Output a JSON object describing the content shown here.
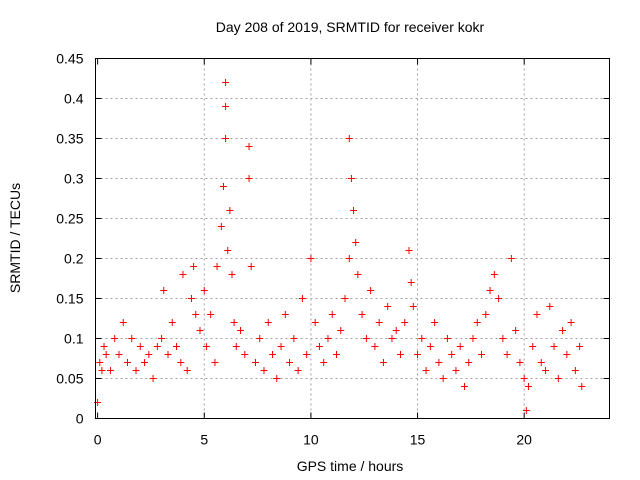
{
  "chart_data": {
    "type": "scatter",
    "title": "Day 208 of 2019, SRMTID for receiver kokr",
    "xlabel": "GPS time / hours",
    "ylabel": "SRMTID / TECUs",
    "xlim": [
      -0.1,
      24
    ],
    "ylim": [
      0,
      0.45
    ],
    "xticks": [
      0,
      5,
      10,
      15,
      20
    ],
    "xtick_labels": [
      "0",
      "5",
      "10",
      "15",
      "20"
    ],
    "yticks": [
      0,
      0.05,
      0.1,
      0.15,
      0.2,
      0.25,
      0.3,
      0.35,
      0.4,
      0.45
    ],
    "ytick_labels": [
      "0",
      "0.05",
      "0.1",
      "0.15",
      "0.2",
      "0.25",
      "0.3",
      "0.35",
      "0.4",
      "0.45"
    ],
    "grid": true,
    "marker": "+",
    "color": "#ff0000",
    "series": [
      {
        "name": "SRMTID",
        "x": [
          0.0,
          0.1,
          0.2,
          0.3,
          0.4,
          0.6,
          0.8,
          1.0,
          1.2,
          1.4,
          1.6,
          1.8,
          2.0,
          2.2,
          2.4,
          2.6,
          2.8,
          3.0,
          3.1,
          3.3,
          3.5,
          3.7,
          3.9,
          4.0,
          4.2,
          4.4,
          4.5,
          4.6,
          4.8,
          5.0,
          5.1,
          5.3,
          5.5,
          5.6,
          5.8,
          5.9,
          6.0,
          6.0,
          6.0,
          6.1,
          6.2,
          6.3,
          6.4,
          6.5,
          6.7,
          6.9,
          7.1,
          7.1,
          7.2,
          7.4,
          7.6,
          7.8,
          8.0,
          8.2,
          8.4,
          8.6,
          8.8,
          9.0,
          9.2,
          9.4,
          9.6,
          9.8,
          10.0,
          10.2,
          10.4,
          10.6,
          10.8,
          11.0,
          11.2,
          11.4,
          11.6,
          11.8,
          11.8,
          11.9,
          12.0,
          12.1,
          12.2,
          12.4,
          12.6,
          12.8,
          13.0,
          13.2,
          13.4,
          13.6,
          13.8,
          14.0,
          14.2,
          14.4,
          14.6,
          14.7,
          14.8,
          15.0,
          15.2,
          15.4,
          15.6,
          15.8,
          16.0,
          16.2,
          16.4,
          16.6,
          16.8,
          17.0,
          17.2,
          17.4,
          17.6,
          17.8,
          18.0,
          18.2,
          18.4,
          18.6,
          18.8,
          19.0,
          19.2,
          19.4,
          19.6,
          19.8,
          20.0,
          20.1,
          20.2,
          20.4,
          20.6,
          20.8,
          21.0,
          21.2,
          21.4,
          21.6,
          21.8,
          22.0,
          22.2,
          22.4,
          22.6,
          22.7
        ],
        "y": [
          0.02,
          0.07,
          0.06,
          0.09,
          0.08,
          0.06,
          0.1,
          0.08,
          0.12,
          0.07,
          0.1,
          0.06,
          0.09,
          0.07,
          0.08,
          0.05,
          0.09,
          0.1,
          0.16,
          0.08,
          0.12,
          0.09,
          0.07,
          0.18,
          0.06,
          0.15,
          0.19,
          0.13,
          0.11,
          0.16,
          0.09,
          0.13,
          0.07,
          0.19,
          0.24,
          0.29,
          0.42,
          0.35,
          0.39,
          0.21,
          0.26,
          0.18,
          0.12,
          0.09,
          0.11,
          0.08,
          0.34,
          0.3,
          0.19,
          0.07,
          0.1,
          0.06,
          0.12,
          0.08,
          0.05,
          0.09,
          0.13,
          0.07,
          0.1,
          0.06,
          0.15,
          0.08,
          0.2,
          0.12,
          0.09,
          0.07,
          0.1,
          0.13,
          0.08,
          0.11,
          0.15,
          0.2,
          0.35,
          0.3,
          0.26,
          0.22,
          0.18,
          0.13,
          0.1,
          0.16,
          0.09,
          0.12,
          0.07,
          0.14,
          0.1,
          0.11,
          0.08,
          0.12,
          0.21,
          0.17,
          0.14,
          0.08,
          0.1,
          0.06,
          0.09,
          0.12,
          0.07,
          0.05,
          0.1,
          0.08,
          0.06,
          0.09,
          0.04,
          0.07,
          0.1,
          0.12,
          0.08,
          0.13,
          0.16,
          0.18,
          0.15,
          0.1,
          0.08,
          0.2,
          0.11,
          0.07,
          0.05,
          0.01,
          0.04,
          0.09,
          0.13,
          0.07,
          0.06,
          0.14,
          0.09,
          0.05,
          0.11,
          0.08,
          0.12,
          0.06,
          0.09,
          0.04
        ]
      }
    ]
  }
}
